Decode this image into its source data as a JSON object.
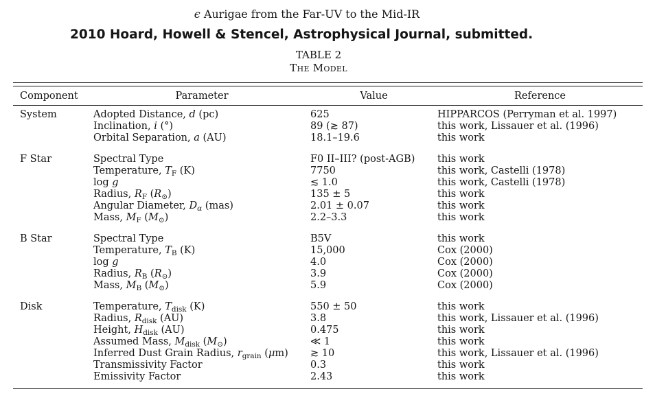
{
  "page": {
    "title_epsilon": "ϵ",
    "title_rest": " Aurigae from the Far-UV to the Mid-IR",
    "byline": "2010 Hoard, Howell & Stencel, Astrophysical Journal, submitted.",
    "table_label": "TABLE 2",
    "table_caption": "The Model"
  },
  "colors": {
    "background": "#ffffff",
    "text": "#151515",
    "rule": "#1c1c1c"
  },
  "table": {
    "columns": [
      "Component",
      "Parameter",
      "Value",
      "Reference"
    ],
    "sections": [
      {
        "component": "System",
        "rows": [
          {
            "param": [
              "Adopted Distance, ",
              {
                "t": "d",
                "s": "i"
              },
              " (pc)"
            ],
            "value": "625",
            "ref": "HIPPARCOS (Perryman et al. 1997)"
          },
          {
            "param": [
              "Inclination, ",
              {
                "t": "i",
                "s": "i"
              },
              " (°)"
            ],
            "value": "89 (≳ 87)",
            "ref": "this work, Lissauer et al. (1996)"
          },
          {
            "param": [
              "Orbital Separation, ",
              {
                "t": "a",
                "s": "i"
              },
              " (AU)"
            ],
            "value": "18.1–19.6",
            "ref": "this work"
          }
        ]
      },
      {
        "component": "F Star",
        "rows": [
          {
            "param": [
              "Spectral Type"
            ],
            "value": "F0 II–III? (post-AGB)",
            "ref": "this work"
          },
          {
            "param": [
              "Temperature, ",
              {
                "t": "T",
                "s": "i"
              },
              {
                "t": "F",
                "s": "sub"
              },
              " (K)"
            ],
            "value": "7750",
            "ref": "this work, Castelli (1978)"
          },
          {
            "param": [
              "log ",
              {
                "t": "g",
                "s": "i"
              }
            ],
            "value": "≲ 1.0",
            "ref": "this work, Castelli (1978)"
          },
          {
            "param": [
              "Radius, ",
              {
                "t": "R",
                "s": "i"
              },
              {
                "t": "F",
                "s": "sub"
              },
              " (",
              {
                "t": "R",
                "s": "i"
              },
              {
                "t": "⊙",
                "s": "sub"
              },
              ")"
            ],
            "value": "135 ± 5",
            "ref": "this work"
          },
          {
            "param": [
              "Angular Diameter, ",
              {
                "t": "D",
                "s": "i"
              },
              {
                "t": "α",
                "s": "subi"
              },
              " (mas)"
            ],
            "value": "2.01 ± 0.07",
            "ref": "this work"
          },
          {
            "param": [
              "Mass, ",
              {
                "t": "M",
                "s": "i"
              },
              {
                "t": "F",
                "s": "sub"
              },
              " (",
              {
                "t": "M",
                "s": "i"
              },
              {
                "t": "⊙",
                "s": "sub"
              },
              ")"
            ],
            "value": "2.2–3.3",
            "ref": "this work"
          }
        ]
      },
      {
        "component": "B Star",
        "rows": [
          {
            "param": [
              "Spectral Type"
            ],
            "value": "B5V",
            "ref": "this work"
          },
          {
            "param": [
              "Temperature, ",
              {
                "t": "T",
                "s": "i"
              },
              {
                "t": "B",
                "s": "sub"
              },
              " (K)"
            ],
            "value": "15,000",
            "ref": "Cox (2000)"
          },
          {
            "param": [
              "log ",
              {
                "t": "g",
                "s": "i"
              }
            ],
            "value": "4.0",
            "ref": "Cox (2000)"
          },
          {
            "param": [
              "Radius, ",
              {
                "t": "R",
                "s": "i"
              },
              {
                "t": "B",
                "s": "sub"
              },
              " (",
              {
                "t": "R",
                "s": "i"
              },
              {
                "t": "⊙",
                "s": "sub"
              },
              ")"
            ],
            "value": "3.9",
            "ref": "Cox (2000)"
          },
          {
            "param": [
              "Mass, ",
              {
                "t": "M",
                "s": "i"
              },
              {
                "t": "B",
                "s": "sub"
              },
              " (",
              {
                "t": "M",
                "s": "i"
              },
              {
                "t": "⊙",
                "s": "sub"
              },
              ")"
            ],
            "value": "5.9",
            "ref": "Cox (2000)"
          }
        ]
      },
      {
        "component": "Disk",
        "rows": [
          {
            "param": [
              "Temperature, ",
              {
                "t": "T",
                "s": "i"
              },
              {
                "t": "disk",
                "s": "sub"
              },
              " (K)"
            ],
            "value": "550 ± 50",
            "ref": "this work"
          },
          {
            "param": [
              "Radius, ",
              {
                "t": "R",
                "s": "i"
              },
              {
                "t": "disk",
                "s": "sub"
              },
              " (AU)"
            ],
            "value": "3.8",
            "ref": "this work, Lissauer et al. (1996)"
          },
          {
            "param": [
              "Height, ",
              {
                "t": "H",
                "s": "i"
              },
              {
                "t": "disk",
                "s": "sub"
              },
              " (AU)"
            ],
            "value": "0.475",
            "ref": "this work"
          },
          {
            "param": [
              "Assumed Mass, ",
              {
                "t": "M",
                "s": "i"
              },
              {
                "t": "disk",
                "s": "sub"
              },
              " (",
              {
                "t": "M",
                "s": "i"
              },
              {
                "t": "⊙",
                "s": "sub"
              },
              ")"
            ],
            "value": "≪ 1",
            "ref": "this work"
          },
          {
            "param": [
              "Inferred Dust Grain Radius, ",
              {
                "t": "r",
                "s": "i"
              },
              {
                "t": "grain",
                "s": "sub"
              },
              " (",
              {
                "t": "μ",
                "s": "i"
              },
              "m)"
            ],
            "value": "≳ 10",
            "ref": "this work, Lissauer et al. (1996)"
          },
          {
            "param": [
              "Transmissivity Factor"
            ],
            "value": "0.3",
            "ref": "this work"
          },
          {
            "param": [
              "Emissivity Factor"
            ],
            "value": "2.43",
            "ref": "this work"
          }
        ]
      }
    ]
  }
}
